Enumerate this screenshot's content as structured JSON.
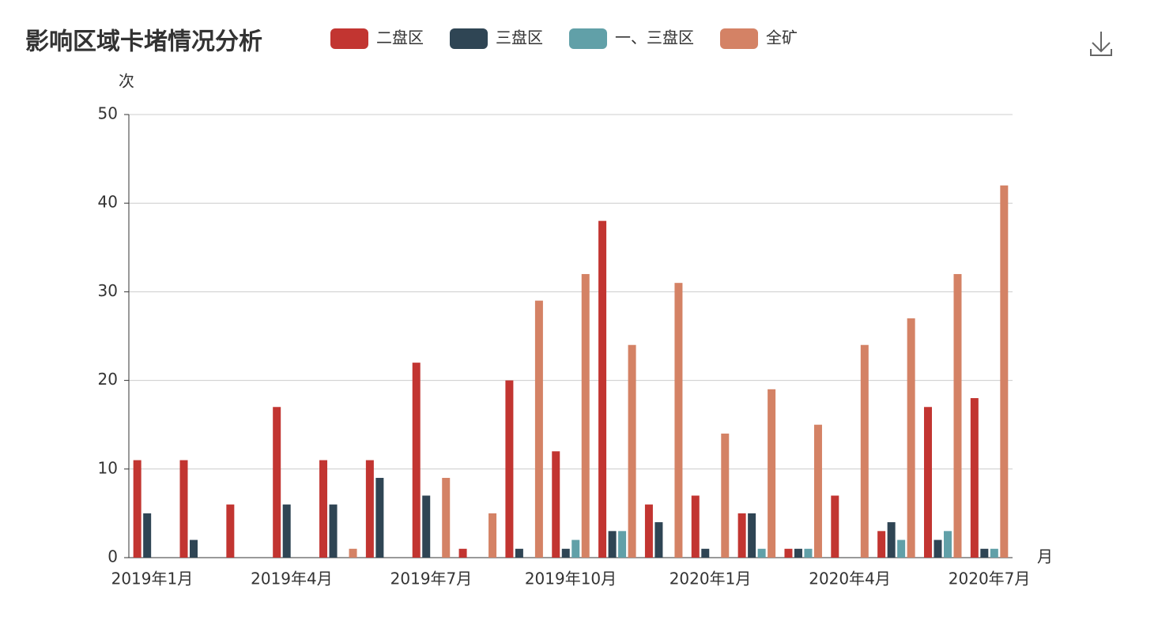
{
  "chart_data": {
    "type": "bar",
    "title": "影响区域卡堵情况分析",
    "y_axis_label": "次",
    "x_axis_label": "月",
    "categories": [
      "2019年1月",
      null,
      null,
      "2019年4月",
      null,
      null,
      "2019年7月",
      null,
      null,
      "2019年10月",
      null,
      null,
      "2020年1月",
      null,
      null,
      "2020年4月",
      null,
      null,
      "2020年7月"
    ],
    "series": [
      {
        "name": "二盘区",
        "color": "#c23531",
        "values": [
          11,
          11,
          6,
          17,
          11,
          11,
          22,
          1,
          20,
          12,
          38,
          6,
          7,
          5,
          1,
          7,
          3,
          17,
          18
        ]
      },
      {
        "name": "三盘区",
        "color": "#2f4554",
        "values": [
          5,
          2,
          0,
          6,
          6,
          9,
          7,
          0,
          1,
          1,
          3,
          4,
          1,
          5,
          1,
          0,
          4,
          2,
          1
        ]
      },
      {
        "name": "一、三盘区",
        "color": "#61a0a8",
        "values": [
          0,
          0,
          0,
          0,
          0,
          0,
          0,
          0,
          0,
          2,
          3,
          0,
          0,
          1,
          1,
          0,
          2,
          3,
          1
        ]
      },
      {
        "name": "全矿",
        "color": "#d48265",
        "values": [
          0,
          0,
          0,
          0,
          1,
          0,
          9,
          5,
          29,
          32,
          24,
          31,
          14,
          19,
          15,
          24,
          27,
          32,
          42
        ]
      }
    ],
    "ylim": [
      0,
      50
    ],
    "yticks": [
      0,
      10,
      20,
      30,
      40,
      50
    ],
    "grid": true,
    "legend": "top"
  }
}
